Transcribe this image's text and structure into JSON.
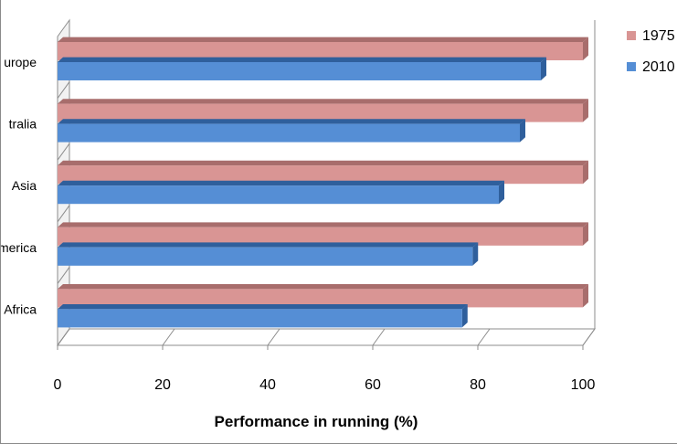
{
  "chart_data": {
    "type": "bar",
    "orientation": "horizontal",
    "style": "3d",
    "title": "",
    "xlabel": "Performance in running (%)",
    "ylabel": "",
    "xlim": [
      0,
      100
    ],
    "x_ticks": [
      "0",
      "20",
      "40",
      "60",
      "80",
      "100"
    ],
    "categories": [
      "urope",
      "tralia",
      "Asia",
      "merica",
      "Africa"
    ],
    "series": [
      {
        "name": "1975",
        "values": [
          100,
          100,
          100,
          100,
          100
        ],
        "color": "#d99594"
      },
      {
        "name": "2010",
        "values": [
          92,
          88,
          84,
          79,
          77
        ],
        "color": "#558ed5"
      }
    ],
    "grid": false,
    "legend_position": "right"
  },
  "colors": {
    "series_1975": "#d99594",
    "series_1975_dark": "#a86d6c",
    "series_2010": "#558ed5",
    "series_2010_dark": "#2f5f9c",
    "wall": "#ffffff",
    "axis": "#8c8c8c"
  }
}
